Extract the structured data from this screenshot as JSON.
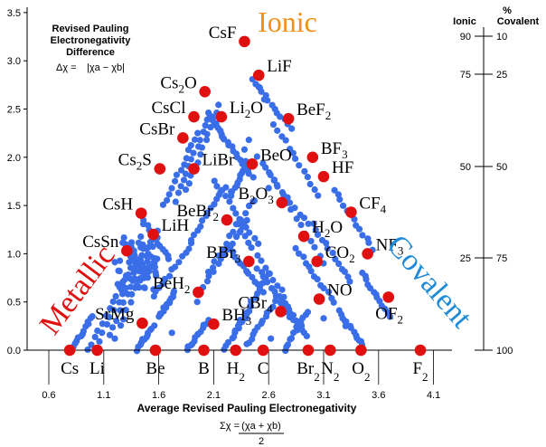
{
  "chart_data": {
    "type": "scatter",
    "title": "",
    "annotation": {
      "line1": "Revised Pauling",
      "line2": "Electronegativity",
      "line3": "Difference",
      "formula_lhs": "Δχ =",
      "formula_rhs": "|χa − χb|"
    },
    "xlabel": "Average Revised Pauling Electronegativity",
    "xformula_lhs": "Σχ =",
    "xformula_num": "(χa + χb)",
    "xformula_den": "2",
    "xlim": [
      0.6,
      4.2
    ],
    "ylim": [
      0,
      3.5
    ],
    "yticks": [
      "0.0",
      "0.5",
      "1.0",
      "1.5",
      "2.0",
      "2.5",
      "3.0",
      "3.5"
    ],
    "xticks": [
      "0.6",
      "1.1",
      "1.6",
      "2.1",
      "2.6",
      "3.1",
      "3.6",
      "4.1"
    ],
    "right_axis": {
      "percent_label": "%",
      "ionic_header": "Ionic",
      "covalent_header": "Covalent",
      "ticks": [
        {
          "dy": 3.2,
          "ionic": "90",
          "covalent": "10"
        },
        {
          "dy": 2.87,
          "ionic": "75",
          "covalent": "25"
        },
        {
          "dy": 1.9,
          "ionic": "50",
          "covalent": "50"
        },
        {
          "dy": 0.95,
          "ionic": "25",
          "covalent": "75"
        },
        {
          "dy": 0.0,
          "ionic": "",
          "covalent": "100"
        }
      ]
    },
    "region_labels": {
      "ionic": "Ionic",
      "metallic": "Metallic",
      "covalent": "Covalent"
    },
    "region_colors": {
      "ionic": "#f0901a",
      "metallic": "#e01010",
      "covalent": "#1f8ad6"
    },
    "element_labels": [
      {
        "x": 0.79,
        "text": "Cs"
      },
      {
        "x": 1.04,
        "text": "Li"
      },
      {
        "x": 1.57,
        "text": "Be"
      },
      {
        "x": 2.01,
        "text": "B"
      },
      {
        "x": 2.3,
        "sym": "H",
        "sub": "2"
      },
      {
        "x": 2.55,
        "text": "C"
      },
      {
        "x": 2.96,
        "sym": "Br",
        "sub": "2"
      },
      {
        "x": 3.16,
        "sym": "N",
        "sub": "2"
      },
      {
        "x": 3.44,
        "sym": "O",
        "sub": "2"
      },
      {
        "x": 3.98,
        "sym": "F",
        "sub": "2"
      }
    ],
    "labeled_points": [
      {
        "x": 2.38,
        "y": 3.2,
        "parts": [
          [
            "CsF",
            ""
          ]
        ],
        "label_side": "left"
      },
      {
        "x": 2.51,
        "y": 2.85,
        "parts": [
          [
            "LiF",
            ""
          ]
        ],
        "label_side": "right"
      },
      {
        "x": 2.02,
        "y": 2.68,
        "parts": [
          [
            "Cs",
            ""
          ],
          [
            "2",
            "sub"
          ],
          [
            "O",
            ""
          ]
        ],
        "label_side": "left"
      },
      {
        "x": 2.17,
        "y": 2.42,
        "parts": [
          [
            "Li",
            ""
          ],
          [
            "2",
            "sub"
          ],
          [
            "O",
            ""
          ]
        ],
        "label_side": "right"
      },
      {
        "x": 1.92,
        "y": 2.42,
        "parts": [
          [
            "CsCl",
            ""
          ]
        ],
        "label_side": "left"
      },
      {
        "x": 2.78,
        "y": 2.4,
        "parts": [
          [
            "BeF",
            ""
          ],
          [
            "2",
            "sub"
          ]
        ],
        "label_side": "right"
      },
      {
        "x": 1.82,
        "y": 2.2,
        "parts": [
          [
            "CsBr",
            ""
          ]
        ],
        "label_side": "left"
      },
      {
        "x": 2.45,
        "y": 1.93,
        "parts": [
          [
            "BeO",
            ""
          ]
        ],
        "label_side": "right"
      },
      {
        "x": 3.0,
        "y": 2.0,
        "parts": [
          [
            "BF",
            ""
          ],
          [
            "3",
            "sub"
          ]
        ],
        "label_side": "right"
      },
      {
        "x": 1.92,
        "y": 1.88,
        "parts": [
          [
            "LiBr",
            ""
          ]
        ],
        "label_side": "right"
      },
      {
        "x": 3.1,
        "y": 1.8,
        "parts": [
          [
            "HF",
            ""
          ]
        ],
        "label_side": "right"
      },
      {
        "x": 1.61,
        "y": 1.88,
        "parts": [
          [
            "Cs",
            ""
          ],
          [
            "2",
            "sub"
          ],
          [
            "S",
            ""
          ]
        ],
        "label_side": "left"
      },
      {
        "x": 2.72,
        "y": 1.53,
        "parts": [
          [
            "B",
            ""
          ],
          [
            "2",
            "sub"
          ],
          [
            "O",
            ""
          ],
          [
            "3",
            "sub"
          ]
        ],
        "label_side": "left"
      },
      {
        "x": 3.35,
        "y": 1.43,
        "parts": [
          [
            "CF",
            ""
          ],
          [
            "4",
            "sub"
          ]
        ],
        "label_side": "right"
      },
      {
        "x": 1.44,
        "y": 1.42,
        "parts": [
          [
            "CsH",
            ""
          ]
        ],
        "label_side": "left"
      },
      {
        "x": 2.22,
        "y": 1.35,
        "parts": [
          [
            "BeBr",
            ""
          ],
          [
            "2",
            "sub"
          ]
        ],
        "label_side": "left"
      },
      {
        "x": 1.55,
        "y": 1.2,
        "parts": [
          [
            "LiH",
            ""
          ]
        ],
        "label_side": "right"
      },
      {
        "x": 2.92,
        "y": 1.18,
        "parts": [
          [
            "H",
            ""
          ],
          [
            "2",
            "sub"
          ],
          [
            "O",
            ""
          ]
        ],
        "label_side": "right"
      },
      {
        "x": 3.5,
        "y": 1.0,
        "parts": [
          [
            "NF",
            ""
          ],
          [
            "3",
            "sub"
          ]
        ],
        "label_side": "right"
      },
      {
        "x": 1.31,
        "y": 1.03,
        "parts": [
          [
            "CsSn",
            ""
          ]
        ],
        "label_side": "left"
      },
      {
        "x": 2.42,
        "y": 0.92,
        "parts": [
          [
            "BBr",
            ""
          ],
          [
            "3",
            "sub"
          ]
        ],
        "label_side": "left"
      },
      {
        "x": 3.04,
        "y": 0.92,
        "parts": [
          [
            "CO",
            ""
          ],
          [
            "2",
            "sub"
          ]
        ],
        "label_side": "right"
      },
      {
        "x": 1.96,
        "y": 0.6,
        "parts": [
          [
            "BeH",
            ""
          ],
          [
            "2",
            "sub"
          ]
        ],
        "label_side": "left"
      },
      {
        "x": 3.06,
        "y": 0.53,
        "parts": [
          [
            "NO",
            ""
          ]
        ],
        "label_side": "right"
      },
      {
        "x": 3.69,
        "y": 0.55,
        "parts": [
          [
            "OF",
            ""
          ],
          [
            "2",
            "sub"
          ]
        ],
        "label_side": "below"
      },
      {
        "x": 2.71,
        "y": 0.4,
        "parts": [
          [
            "CBr",
            ""
          ],
          [
            "4",
            "sub"
          ]
        ],
        "label_side": "left"
      },
      {
        "x": 2.1,
        "y": 0.27,
        "parts": [
          [
            "BH",
            ""
          ],
          [
            "3",
            "sub"
          ]
        ],
        "label_side": "right"
      },
      {
        "x": 1.45,
        "y": 0.28,
        "parts": [
          [
            "SrMg",
            ""
          ]
        ],
        "label_side": "left"
      }
    ],
    "unlabeled_red_points": [
      {
        "x": 0.79,
        "y": 0.0
      },
      {
        "x": 1.04,
        "y": 0.0
      },
      {
        "x": 1.57,
        "y": 0.0
      },
      {
        "x": 2.01,
        "y": 0.0
      },
      {
        "x": 2.3,
        "y": 0.0
      },
      {
        "x": 2.55,
        "y": 0.0
      },
      {
        "x": 2.96,
        "y": 0.0
      },
      {
        "x": 3.16,
        "y": 0.0
      },
      {
        "x": 3.44,
        "y": 0.0
      },
      {
        "x": 3.98,
        "y": 0.0
      }
    ]
  }
}
